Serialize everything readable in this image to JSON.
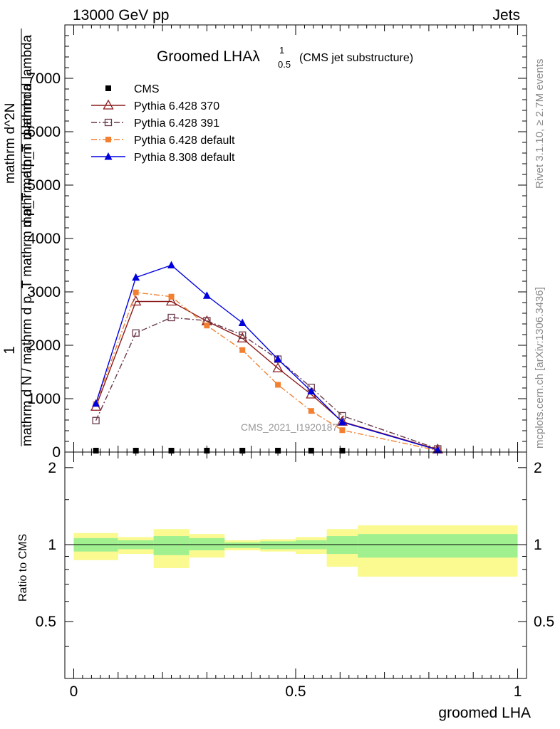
{
  "header": {
    "energy_label": "13000 GeV pp",
    "process_label": "Jets",
    "side_label_rivet": "Rivet 3.1.10, ≥ 2.7M events",
    "side_label_mcplots": "mcplots.cern.ch [arXiv:1306.3436]",
    "watermark": "CMS_2021_I1920187"
  },
  "chart_data": [
    {
      "type": "line",
      "title": "Groomed LHA",
      "title_symbol": "λ",
      "title_sup": "1",
      "title_sub": "0.5",
      "subtitle": "(CMS jet substructure)",
      "xlabel": "",
      "ylabel_lines": [
        "1",
        "mathrm d N / mathrm d p_T mathrm d p_T mathrm d lambda",
        "mathrm d^2N",
        "mathrm d p_T mathrm d lambda"
      ],
      "xlim": [
        -0.02,
        1.02
      ],
      "ylim": [
        0,
        8000
      ],
      "yticks": [
        0,
        1000,
        2000,
        3000,
        4000,
        5000,
        6000,
        7000
      ],
      "ytick_labels": [
        "0",
        "1000",
        "2000",
        "3000",
        "4000",
        "5000",
        "6000",
        "7000"
      ],
      "legend_position": "top-left",
      "series": [
        {
          "name": "CMS",
          "color": "#000000",
          "marker": "square",
          "x": [
            0.05,
            0.14,
            0.22,
            0.3,
            0.38,
            0.46,
            0.535,
            0.605
          ],
          "values": [
            0,
            0,
            0,
            0,
            0,
            0,
            0,
            0
          ]
        },
        {
          "name": "Pythia 6.428 370",
          "color": "#8b1a1a",
          "marker": "triangle-open",
          "line": "solid",
          "x": [
            0.05,
            0.14,
            0.22,
            0.3,
            0.38,
            0.46,
            0.535,
            0.605,
            0.82
          ],
          "values": [
            850,
            2820,
            2820,
            2450,
            2130,
            1570,
            1080,
            570,
            50
          ]
        },
        {
          "name": "Pythia 6.428 391",
          "color": "#6b3a4a",
          "marker": "square-open",
          "line": "dashdot",
          "x": [
            0.05,
            0.14,
            0.22,
            0.3,
            0.38,
            0.46,
            0.535,
            0.605,
            0.82
          ],
          "values": [
            590,
            2230,
            2520,
            2460,
            2190,
            1740,
            1210,
            680,
            60
          ]
        },
        {
          "name": "Pythia 6.428 default",
          "color": "#f28030",
          "marker": "square",
          "line": "dashdot",
          "x": [
            0.05,
            0.14,
            0.22,
            0.3,
            0.38,
            0.46,
            0.535,
            0.605,
            0.82
          ],
          "values": [
            900,
            2990,
            2910,
            2370,
            1910,
            1260,
            770,
            410,
            30
          ]
        },
        {
          "name": "Pythia 8.308 default",
          "color": "#0000dd",
          "marker": "triangle",
          "line": "solid",
          "x": [
            0.05,
            0.14,
            0.22,
            0.3,
            0.38,
            0.46,
            0.535,
            0.605,
            0.82
          ],
          "values": [
            910,
            3270,
            3500,
            2930,
            2420,
            1740,
            1140,
            560,
            40
          ]
        }
      ]
    },
    {
      "type": "area",
      "xlabel": "groomed LHA",
      "ylabel": "Ratio to CMS",
      "xlim": [
        -0.02,
        1.02
      ],
      "ylim": [
        0.3,
        2.3
      ],
      "xticks": [
        0,
        0.5,
        1
      ],
      "xtick_labels": [
        "0",
        "0.5",
        "1"
      ],
      "yticks": [
        0.5,
        1,
        2
      ],
      "ytick_labels": [
        "0.5",
        "1",
        "2"
      ],
      "reference_line": 1,
      "bands": [
        {
          "x_low": 0.0,
          "x_high": 0.1,
          "inner": [
            0.94,
            1.06
          ],
          "outer": [
            0.87,
            1.11
          ]
        },
        {
          "x_low": 0.1,
          "x_high": 0.18,
          "inner": [
            0.96,
            1.04
          ],
          "outer": [
            0.92,
            1.07
          ]
        },
        {
          "x_low": 0.18,
          "x_high": 0.26,
          "inner": [
            0.91,
            1.08
          ],
          "outer": [
            0.81,
            1.15
          ]
        },
        {
          "x_low": 0.26,
          "x_high": 0.34,
          "inner": [
            0.95,
            1.06
          ],
          "outer": [
            0.89,
            1.1
          ]
        },
        {
          "x_low": 0.34,
          "x_high": 0.42,
          "inner": [
            0.97,
            1.02
          ],
          "outer": [
            0.95,
            1.04
          ]
        },
        {
          "x_low": 0.42,
          "x_high": 0.5,
          "inner": [
            0.96,
            1.03
          ],
          "outer": [
            0.94,
            1.05
          ]
        },
        {
          "x_low": 0.5,
          "x_high": 0.57,
          "inner": [
            0.96,
            1.04
          ],
          "outer": [
            0.92,
            1.07
          ]
        },
        {
          "x_low": 0.57,
          "x_high": 0.64,
          "inner": [
            0.92,
            1.08
          ],
          "outer": [
            0.82,
            1.15
          ]
        },
        {
          "x_low": 0.64,
          "x_high": 1.0,
          "inner": [
            0.89,
            1.1
          ],
          "outer": [
            0.75,
            1.19
          ]
        }
      ],
      "colors": {
        "inner": "#a0f090",
        "outer": "#fafa90"
      }
    }
  ]
}
